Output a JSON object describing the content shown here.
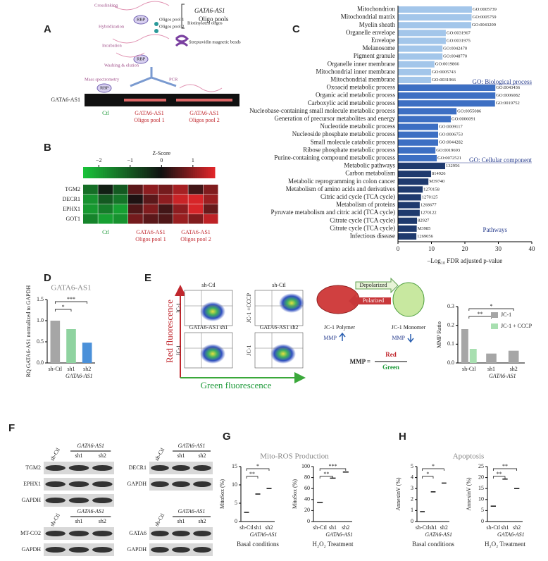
{
  "figure": {
    "panel_labels": [
      "A",
      "B",
      "C",
      "D",
      "E",
      "F",
      "G",
      "H"
    ],
    "panel_a": {
      "steps": [
        "Crosslinking",
        "Hybridization",
        "Incubation",
        "Washing & elution",
        "Mass spectrometry",
        "PCR"
      ],
      "rbp": "RBP",
      "oligos": [
        "Oligos pool 1",
        "Oligos pool 2",
        "Biotinylated oligos"
      ],
      "beads": "Streptavidin magnetic beads",
      "pools_title": [
        "GATA6-AS1",
        "Oligo pools"
      ],
      "gel_label": "GATA6-AS1",
      "lanes": [
        [
          "Ctl"
        ],
        [
          "GATA6-AS1",
          "Oligos pool 1"
        ],
        [
          "GATA6-AS1",
          "Oligos pool 2"
        ]
      ]
    },
    "panel_e": {
      "plots": [
        {
          "title": "sh-Ctl",
          "ylabel": "JC-1"
        },
        {
          "title": "sh-Ctl",
          "ylabel": "JC-1 +CCCP"
        },
        {
          "title": "GATA6-AS1 sh1",
          "ylabel": "JC-1"
        },
        {
          "title": "GATA6-AS1 sh2",
          "ylabel": "JC-1"
        }
      ],
      "y_axis": "Red fluorescence",
      "x_axis": "Green fluorescence",
      "states": [
        "Depolarized",
        "Polarized"
      ],
      "forms": [
        "JC-1 Polymer",
        "JC-1 Monomer"
      ],
      "mmp": [
        "MMP",
        "MMP"
      ],
      "equation": {
        "lhs": "MMP =",
        "num": "Red",
        "den": "Green"
      }
    },
    "panel_f": {
      "blots": [
        {
          "lanes": [
            "sh-Ctl",
            "sh1",
            "sh2"
          ],
          "group": "GATA6-AS1",
          "rows": [
            "TGM2",
            "EPHX1",
            "GAPDH"
          ]
        },
        {
          "lanes": [
            "sh-Ctl",
            "sh1",
            "sh2"
          ],
          "group": "GATA6-AS1",
          "rows": [
            "DECR1",
            "GAPDH"
          ]
        },
        {
          "lanes": [
            "sh-Ctl",
            "sh1",
            "sh2"
          ],
          "group": "GATA6-AS1",
          "rows": [
            "MT-CO2",
            "GAPDH"
          ]
        },
        {
          "lanes": [
            "sh-Ctl",
            "sh1",
            "sh2"
          ],
          "group": "GATA6-AS1",
          "rows": [
            "GATA6",
            "GAPDH"
          ]
        }
      ]
    },
    "panel_g": {
      "title": "Mito-ROS Production"
    },
    "panel_h": {
      "title": "Apoptosis"
    }
  },
  "chart_data": [
    {
      "type": "heatmap",
      "title": "Z-Score",
      "rows": [
        "TGM2",
        "DECR1",
        "EPHX1",
        "GOT1"
      ],
      "values": [
        [
          -1.3,
          -0.2,
          -1.0,
          0.6,
          1.0,
          0.8,
          1.2,
          0.4,
          0.9
        ],
        [
          -1.8,
          -1.0,
          -1.4,
          0.1,
          0.6,
          1.0,
          1.5,
          1.6,
          1.1
        ],
        [
          -1.9,
          -1.5,
          -2.0,
          0.5,
          0.9,
          0.4,
          1.0,
          1.6,
          0.7
        ],
        [
          -1.6,
          -2.0,
          -1.8,
          0.8,
          0.6,
          0.5,
          1.1,
          0.9,
          1.4
        ]
      ],
      "zlim": [
        -2.5,
        1.7
      ],
      "zticks": [
        {
          "value": -2,
          "label": "−2"
        },
        {
          "value": -1,
          "label": "−1"
        },
        0,
        1
      ],
      "colors": [
        "#19c43a",
        "#111111",
        "#e3262a"
      ],
      "column_groups": [
        [
          "Ctl"
        ],
        [
          "GATA6-AS1",
          "Oligos pool 1"
        ],
        [
          "GATA6-AS1",
          "Oligos pool 2"
        ]
      ]
    },
    {
      "type": "hbar",
      "x_label": "–Log₁₀ FDR adjusted p-value",
      "xlim": [
        0,
        40
      ],
      "xticks": [
        0,
        10,
        20,
        30,
        40
      ],
      "series": [
        {
          "name": "GO: Biological process",
          "color": "#a3c6ea",
          "categories": [
            "Mitochondrion",
            "Mitochondrial matrix",
            "Myelin sheath",
            "Organelle envelope",
            "Envelope",
            "Melanosome",
            "Pigment granule",
            "Organelle inner membrane",
            "Mitochondrial inner membrane",
            "Mitochondrial membrane"
          ],
          "values": [
            22.1,
            22.0,
            21.9,
            14.3,
            14.3,
            13.3,
            13.3,
            10.9,
            9.9,
            9.9
          ],
          "ids": [
            "GO:0005739",
            "GO:0005759",
            "GO:0043209",
            "GO:0031967",
            "GO:0031975",
            "GO:0042470",
            "GO:0048770",
            "GO:0019866",
            "GO:0005743",
            "GO:0031966"
          ]
        },
        {
          "name": "GO: Cellular component",
          "color": "#3d6fc3",
          "categories": [
            "Oxoacid metabolic process",
            "Organic acid metabolic process",
            "Carboxylic acid metabolic process",
            "Nucleobase-containing small molecule metabolic process",
            "Generation of precursor metabolites and energy",
            "Nucleotide metabolic process",
            "Nucleoside phosphate metabolic process",
            "Small molecule catabolic process",
            "Ribose phosphate metabolic process",
            "Purine-containing compound metabolic process"
          ],
          "values": [
            29.1,
            29.1,
            29.0,
            17.5,
            15.8,
            12.0,
            12.0,
            12.0,
            11.2,
            11.6
          ],
          "ids": [
            "GO:0043436",
            "GO:0006082",
            "GO:0019752",
            "GO:0055086",
            "GO:0006091",
            "GO:0009117",
            "GO:0006753",
            "GO:0044282",
            "GO:0019693",
            "GO:0072521"
          ]
        },
        {
          "name": "Pathways",
          "color": "#1f3a6e",
          "categories": [
            "Metabolic pathways",
            "Carbon metabolism",
            "Metabolic reprogramming in colon cancer",
            "Metabolism of amino acids and derivatives",
            "Citric acid cycle (TCA cycle)",
            "Metabolism of proteins",
            "Pyruvate metabolism and citric acid (TCA cycle)",
            "Citrate cycle (TCA cycle)",
            "Citrate cycle (TCA cycle)",
            "Infectious disease"
          ],
          "values": [
            14.1,
            9.9,
            9.1,
            7.4,
            6.9,
            6.5,
            6.5,
            5.7,
            5.6,
            5.5
          ],
          "ids": [
            "132956",
            "814926",
            "M39740",
            "1270158",
            "1270125",
            "1268677",
            "1270122",
            "82927",
            "M3985",
            "1269056"
          ]
        }
      ]
    },
    {
      "type": "bar",
      "title": "GATA6-AS1",
      "y_label": "RQ GATA6-AS1 normalized to GAPDH",
      "categories": [
        "sh-Ctl",
        "sh1",
        "sh2"
      ],
      "group_label": "GATA6-AS1",
      "values": [
        1.0,
        0.8,
        0.48
      ],
      "colors": [
        "#a6a6a6",
        "#8fd3a0",
        "#4a90d9"
      ],
      "ylim": [
        0,
        1.5
      ],
      "yticks": [
        {
          "value": 0,
          "label": "0.0"
        },
        {
          "value": 0.5,
          "label": "0.5"
        },
        {
          "value": 1,
          "label": "1.0"
        },
        {
          "value": 1.5,
          "label": "1.5"
        }
      ],
      "significance": [
        "*",
        "***"
      ]
    },
    {
      "type": "bar",
      "y_label": "MMP Ratio",
      "categories": [
        "sh-Ctl",
        "sh1",
        "sh2"
      ],
      "group_label": "GATA6-AS1",
      "series": [
        {
          "name": "JC-1",
          "color": "#a6a6a6",
          "values": [
            0.18,
            0.05,
            0.065
          ]
        },
        {
          "name": "JC-1 + CCCP",
          "color": "#a8dfb0",
          "values": [
            0.075,
            null,
            null
          ]
        }
      ],
      "ylim": [
        0,
        0.3
      ],
      "yticks": [
        {
          "value": 0,
          "label": "0.0"
        },
        {
          "value": 0.1,
          "label": "0.1"
        },
        {
          "value": 0.2,
          "label": "0.2"
        },
        {
          "value": 0.3,
          "label": "0.3"
        }
      ],
      "legend": "upper right",
      "significance": [
        "**",
        "*"
      ]
    },
    {
      "type": "dot",
      "y_label": "MitoSox (%)",
      "x_label": "Basal conditions",
      "categories": [
        "sh-Ctl",
        "sh1",
        "sh2"
      ],
      "group_label": "GATA6-AS1",
      "values": [
        2.5,
        7.5,
        9
      ],
      "ylim": [
        0,
        15
      ],
      "yticks": [
        0,
        5,
        10,
        15
      ],
      "significance": [
        "**",
        "*"
      ]
    },
    {
      "type": "dot",
      "y_label": "MitoSox (%)",
      "x_label": "H₂O₂ Treatment",
      "categories": [
        "sh-Ctl",
        "sh1",
        "sh2"
      ],
      "group_label": "GATA6-AS1",
      "values": [
        35,
        79,
        90
      ],
      "ylim": [
        0,
        100
      ],
      "yticks": [
        0,
        20,
        40,
        60,
        80,
        100
      ],
      "significance": [
        "**",
        "***"
      ]
    },
    {
      "type": "dot",
      "y_label": "AnnexinV (%)",
      "x_label": "Basal conditions",
      "categories": [
        "sh-Ctl",
        "sh1",
        "sh2"
      ],
      "group_label": "GATA6-AS1",
      "values": [
        0.9,
        2.7,
        3.5
      ],
      "ylim": [
        0,
        5
      ],
      "yticks": [
        0,
        1,
        2,
        3,
        4,
        5
      ],
      "significance": [
        "*",
        "*"
      ]
    },
    {
      "type": "dot",
      "y_label": "AnnexinV (%)",
      "x_label": "H₂O₂ Treatment",
      "categories": [
        "sh-Ctl",
        "sh1",
        "sh2"
      ],
      "group_label": "GATA6-AS1",
      "values": [
        7,
        19.3,
        15
      ],
      "ylim": [
        0,
        25
      ],
      "yticks": [
        0,
        5,
        10,
        15,
        20,
        25
      ],
      "significance": [
        "**",
        "**"
      ]
    }
  ]
}
